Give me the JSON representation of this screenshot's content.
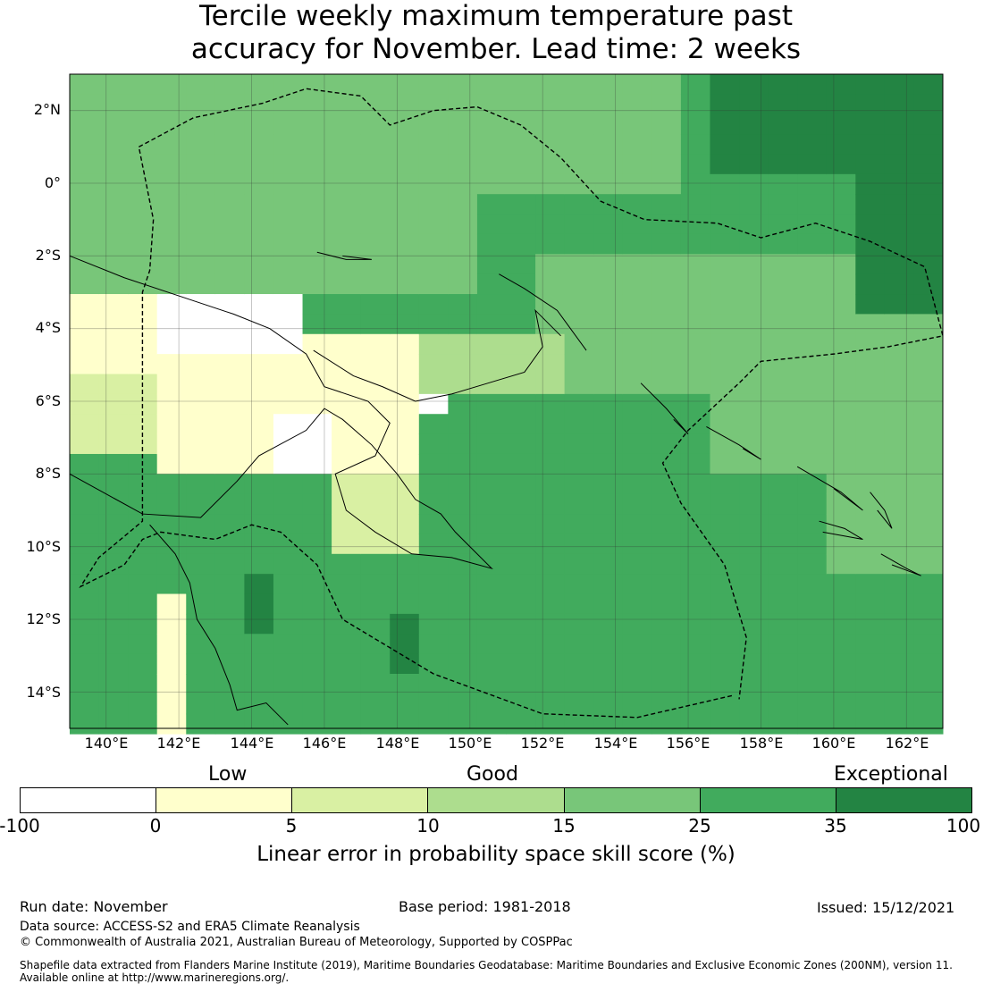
{
  "title": {
    "line1": "Tercile weekly maximum temperature past",
    "line2": "accuracy for November. Lead time: 2 weeks"
  },
  "map": {
    "lat_labels": [
      "2°N",
      "0°",
      "2°S",
      "4°S",
      "6°S",
      "8°S",
      "10°S",
      "12°S",
      "14°S"
    ],
    "lon_labels": [
      "140°E",
      "142°E",
      "144°E",
      "146°E",
      "148°E",
      "150°E",
      "152°E",
      "154°E",
      "156°E",
      "158°E",
      "160°E",
      "162°E"
    ],
    "lon_range": [
      "139°E",
      "163°E"
    ],
    "lat_range": [
      "15°S",
      "3°N"
    ],
    "grid": true,
    "boundary_style": "dashed"
  },
  "legend": {
    "category_labels": [
      "Low",
      "Good",
      "Exceptional"
    ],
    "ticks": [
      "-100",
      "0",
      "5",
      "10",
      "15",
      "25",
      "35",
      "100"
    ],
    "colors": [
      "#ffffff",
      "#ffffcc",
      "#d9f0a3",
      "#addd8e",
      "#78c679",
      "#41ab5d",
      "#238443"
    ],
    "label": "Linear error in probability space skill score (%)"
  },
  "footer": {
    "run_date": "Run date: November",
    "base_period": "Base period: 1981-2018",
    "issued": "Issued: 15/12/2021",
    "data_source": "Data source: ACCESS-S2 and ERA5 Climate Reanalysis",
    "copyright": "© Commonwealth of Australia 2021, Australian Bureau of Meteorology, Supported by COSPPac",
    "shapefile_line1": "Shapefile data extracted from Flanders Marine Institute (2019), Maritime Boundaries Geodatabase: Maritime Boundaries and Exclusive Economic Zones (200NM), version 11.",
    "shapefile_line2": "Available online at http://www.marineregions.org/."
  }
}
